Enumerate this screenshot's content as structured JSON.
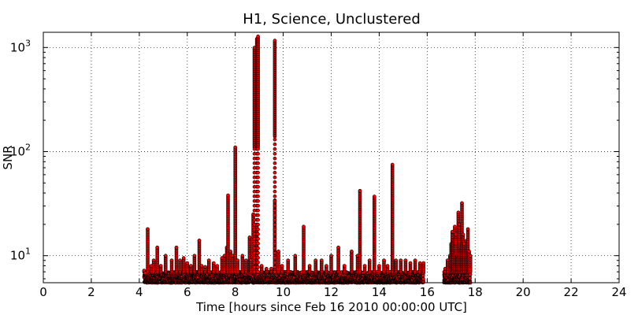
{
  "chart_data": {
    "type": "scatter",
    "title": "H1, Science, Unclustered",
    "xlabel": "Time [hours since Feb 16 2010 00:00:00 UTC]",
    "ylabel": "SNR",
    "xlim": [
      0,
      24
    ],
    "ylim": [
      5.5,
      1400
    ],
    "yscale": "log",
    "grid": true,
    "x_ticks": [
      "0",
      "2",
      "4",
      "6",
      "8",
      "10",
      "12",
      "14",
      "16",
      "18",
      "20",
      "22",
      "24"
    ],
    "y_ticks": [
      {
        "base": "10",
        "exp": "1",
        "value": 10
      },
      {
        "base": "10",
        "exp": "2",
        "value": 100
      },
      {
        "base": "10",
        "exp": "3",
        "value": 1000
      }
    ],
    "marker_color": "#ff0000",
    "marker_edge_color": "#000000",
    "data_segments": [
      {
        "x_start": 4.2,
        "x_end": 15.85
      },
      {
        "x_start": 16.7,
        "x_end": 17.8
      }
    ],
    "baseline_snr": [
      5.5,
      7.0
    ],
    "spikes": [
      {
        "x": 4.2,
        "top": 7.2
      },
      {
        "x": 4.25,
        "top": 6.8
      },
      {
        "x": 4.35,
        "top": 18
      },
      {
        "x": 4.5,
        "top": 8
      },
      {
        "x": 4.6,
        "top": 9
      },
      {
        "x": 4.75,
        "top": 12
      },
      {
        "x": 4.9,
        "top": 8
      },
      {
        "x": 5.1,
        "top": 10
      },
      {
        "x": 5.35,
        "top": 9
      },
      {
        "x": 5.55,
        "top": 12
      },
      {
        "x": 5.7,
        "top": 9
      },
      {
        "x": 5.85,
        "top": 9.5
      },
      {
        "x": 6.0,
        "top": 8.5
      },
      {
        "x": 6.15,
        "top": 8
      },
      {
        "x": 6.3,
        "top": 10
      },
      {
        "x": 6.5,
        "top": 14
      },
      {
        "x": 6.6,
        "top": 8
      },
      {
        "x": 6.75,
        "top": 7.8
      },
      {
        "x": 6.9,
        "top": 9
      },
      {
        "x": 7.1,
        "top": 8.5
      },
      {
        "x": 7.25,
        "top": 8
      },
      {
        "x": 7.45,
        "top": 9.5
      },
      {
        "x": 7.55,
        "top": 10
      },
      {
        "x": 7.65,
        "top": 12
      },
      {
        "x": 7.7,
        "top": 38
      },
      {
        "x": 7.8,
        "top": 11
      },
      {
        "x": 7.9,
        "top": 10
      },
      {
        "x": 8.0,
        "top": 110
      },
      {
        "x": 8.1,
        "top": 9
      },
      {
        "x": 8.3,
        "top": 10
      },
      {
        "x": 8.45,
        "top": 9
      },
      {
        "x": 8.6,
        "top": 15
      },
      {
        "x": 8.65,
        "top": 9
      },
      {
        "x": 8.75,
        "top": 25
      },
      {
        "x": 8.8,
        "top": 9
      },
      {
        "x": 8.9,
        "top": 20
      },
      {
        "x": 9.1,
        "top": 8
      },
      {
        "x": 9.3,
        "top": 7.5
      },
      {
        "x": 9.5,
        "top": 7.5
      },
      {
        "x": 9.65,
        "top": 34
      },
      {
        "x": 9.8,
        "top": 11
      },
      {
        "x": 9.95,
        "top": 8
      },
      {
        "x": 10.2,
        "top": 9
      },
      {
        "x": 10.5,
        "top": 10
      },
      {
        "x": 10.85,
        "top": 19
      },
      {
        "x": 11.1,
        "top": 8
      },
      {
        "x": 11.35,
        "top": 9
      },
      {
        "x": 11.6,
        "top": 9
      },
      {
        "x": 11.8,
        "top": 8
      },
      {
        "x": 12.0,
        "top": 10
      },
      {
        "x": 12.3,
        "top": 12
      },
      {
        "x": 12.55,
        "top": 8
      },
      {
        "x": 12.85,
        "top": 11
      },
      {
        "x": 13.1,
        "top": 10
      },
      {
        "x": 13.2,
        "top": 42
      },
      {
        "x": 13.4,
        "top": 8
      },
      {
        "x": 13.6,
        "top": 9
      },
      {
        "x": 13.8,
        "top": 37
      },
      {
        "x": 14.0,
        "top": 8
      },
      {
        "x": 14.2,
        "top": 9
      },
      {
        "x": 14.35,
        "top": 8
      },
      {
        "x": 14.55,
        "top": 75
      },
      {
        "x": 14.7,
        "top": 9
      },
      {
        "x": 14.9,
        "top": 9
      },
      {
        "x": 15.1,
        "top": 9
      },
      {
        "x": 15.3,
        "top": 8.5
      },
      {
        "x": 15.5,
        "top": 9
      },
      {
        "x": 15.7,
        "top": 8.5
      },
      {
        "x": 15.85,
        "top": 8.5
      },
      {
        "x": 16.75,
        "top": 7.5
      },
      {
        "x": 16.85,
        "top": 9
      },
      {
        "x": 16.95,
        "top": 10
      },
      {
        "x": 17.0,
        "top": 13
      },
      {
        "x": 17.05,
        "top": 17
      },
      {
        "x": 17.1,
        "top": 14
      },
      {
        "x": 17.15,
        "top": 19
      },
      {
        "x": 17.2,
        "top": 16
      },
      {
        "x": 17.25,
        "top": 10
      },
      {
        "x": 17.3,
        "top": 26
      },
      {
        "x": 17.35,
        "top": 20
      },
      {
        "x": 17.4,
        "top": 12
      },
      {
        "x": 17.45,
        "top": 32
      },
      {
        "x": 17.5,
        "top": 16
      },
      {
        "x": 17.55,
        "top": 13
      },
      {
        "x": 17.6,
        "top": 12
      },
      {
        "x": 17.65,
        "top": 14
      },
      {
        "x": 17.7,
        "top": 18
      },
      {
        "x": 17.75,
        "top": 11
      },
      {
        "x": 17.8,
        "top": 10
      }
    ],
    "columns": [
      {
        "x": 8.8,
        "low": 110,
        "high": 1000
      },
      {
        "x": 8.9,
        "low": 110,
        "high": 1220
      },
      {
        "x": 8.95,
        "low": 110,
        "high": 1300
      },
      {
        "x": 9.65,
        "low": 140,
        "high": 1180
      }
    ]
  }
}
